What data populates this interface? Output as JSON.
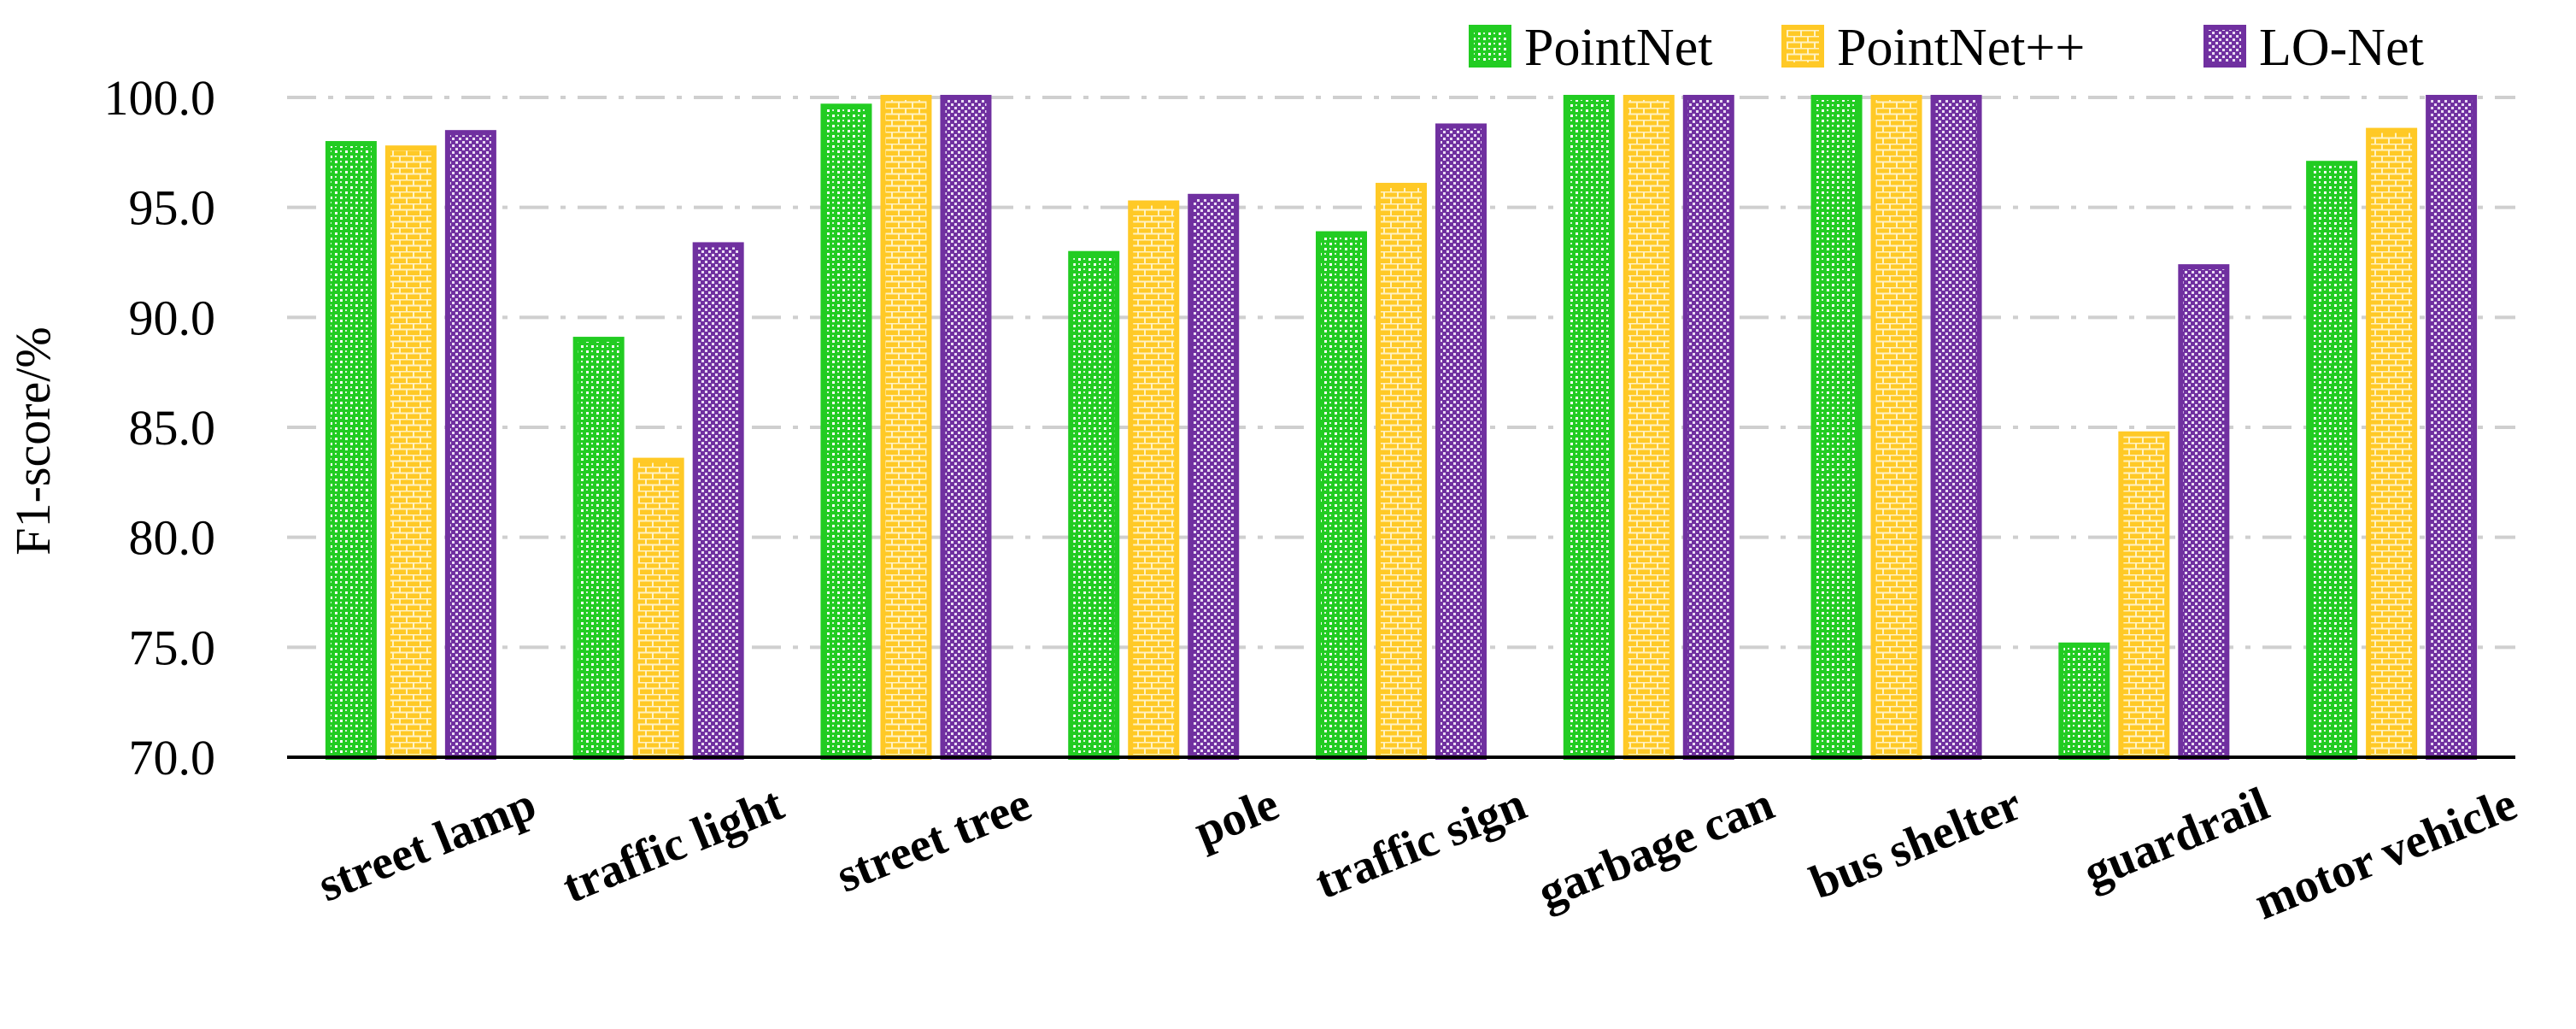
{
  "chart_data": {
    "type": "bar",
    "title": "",
    "xlabel": "",
    "ylabel": "F1-score/%",
    "ylim": [
      70.0,
      100.0
    ],
    "yticks": [
      "70.0",
      "75.0",
      "80.0",
      "85.0",
      "90.0",
      "95.0",
      "100.0"
    ],
    "grid": "horizontal dash-dot",
    "legend_position": "top-right",
    "categories": [
      "street lamp",
      "traffic light",
      "street tree",
      "pole",
      "traffic sign",
      "garbage can",
      "bus shelter",
      "guardrail",
      "motor vehicle"
    ],
    "series": [
      {
        "name": "PointNet",
        "color": "#22CC22",
        "values": [
          97.9,
          89.0,
          99.6,
          92.9,
          93.8,
          100.0,
          100.0,
          75.1,
          97.0
        ]
      },
      {
        "name": "PointNet++",
        "color": "#FFC926",
        "values": [
          97.7,
          83.5,
          100.0,
          95.2,
          96.0,
          100.0,
          100.0,
          84.7,
          98.5
        ]
      },
      {
        "name": "LO-Net",
        "color": "#7030A0",
        "values": [
          98.4,
          93.3,
          100.0,
          95.5,
          98.7,
          100.0,
          100.0,
          92.3,
          100.0
        ]
      }
    ]
  }
}
